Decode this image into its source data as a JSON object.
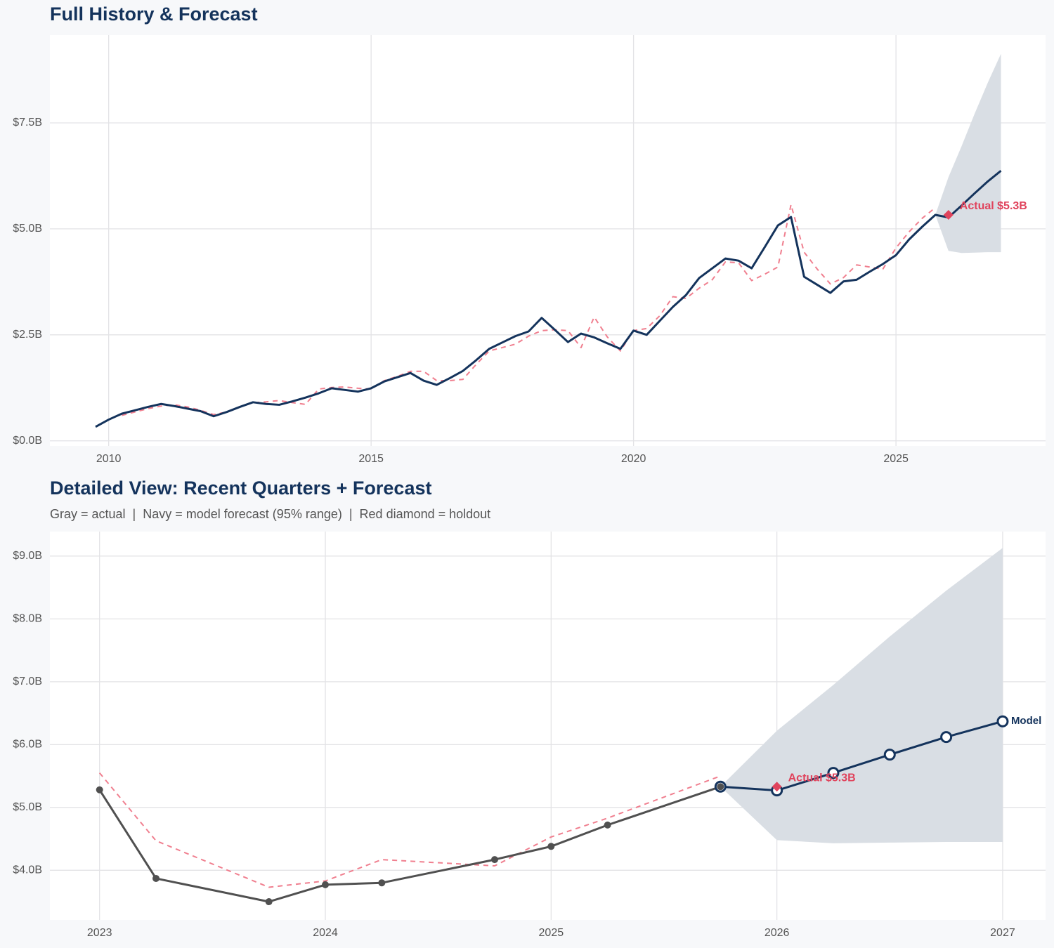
{
  "chart_data": [
    {
      "type": "line",
      "title": "Full History & Forecast",
      "xlim": [
        2008.88,
        2027.85
      ],
      "xticks": [
        2010,
        2015,
        2020,
        2025
      ],
      "ylim": [
        -0.12,
        9.57
      ],
      "yticks": [
        {
          "value": 0,
          "label": "$0.0B"
        },
        {
          "value": 2.5,
          "label": "$2.5B"
        },
        {
          "value": 5,
          "label": "$5.0B"
        },
        {
          "value": 7.5,
          "label": "$7.5B"
        }
      ],
      "grid": true,
      "band": {
        "x": [
          2025.75,
          2026,
          2026.25,
          2026.5,
          2026.75,
          2027
        ],
        "lower": [
          5.33,
          4.48,
          4.43,
          4.44,
          4.45,
          4.45
        ],
        "upper": [
          5.33,
          6.22,
          6.95,
          7.72,
          8.45,
          9.13
        ],
        "color": "#d9dee4"
      },
      "series": [
        {
          "color": "#f07f8f",
          "dash": true,
          "x": [
            2010.25,
            2010.5,
            2010.75,
            2011,
            2011.25,
            2011.5,
            2011.75,
            2012,
            2012.25,
            2012.5,
            2012.75,
            2013,
            2013.25,
            2013.5,
            2013.75,
            2014,
            2014.25,
            2014.5,
            2014.75,
            2015,
            2015.25,
            2015.5,
            2015.75,
            2016,
            2016.25,
            2016.5,
            2016.75,
            2017,
            2017.25,
            2017.5,
            2017.75,
            2018,
            2018.25,
            2018.5,
            2018.75,
            2019,
            2019.25,
            2019.5,
            2019.75,
            2020,
            2020.25,
            2020.5,
            2020.75,
            2021,
            2021.25,
            2021.5,
            2021.75,
            2022,
            2022.25,
            2022.5,
            2022.75,
            2023,
            2023.25,
            2023.5,
            2023.75,
            2024,
            2024.25,
            2024.5,
            2024.75,
            2025,
            2025.25,
            2025.5,
            2025.75
          ],
          "values": [
            0.6,
            0.68,
            0.76,
            0.82,
            0.85,
            0.8,
            0.72,
            0.62,
            0.68,
            0.8,
            0.9,
            0.92,
            0.95,
            0.9,
            0.86,
            1.22,
            1.26,
            1.27,
            1.24,
            1.22,
            1.42,
            1.52,
            1.64,
            1.64,
            1.42,
            1.42,
            1.45,
            1.8,
            2.12,
            2.2,
            2.28,
            2.47,
            2.6,
            2.62,
            2.6,
            2.2,
            2.92,
            2.45,
            2.12,
            2.6,
            2.65,
            2.95,
            3.4,
            3.36,
            3.6,
            3.8,
            4.22,
            4.2,
            3.78,
            3.93,
            4.1,
            5.57,
            4.45,
            4.05,
            3.7,
            3.85,
            4.15,
            4.1,
            4.05,
            4.55,
            4.93,
            5.25,
            5.5
          ]
        },
        {
          "color": "#14335c",
          "x": [
            2009.75,
            2010,
            2010.25,
            2010.5,
            2010.75,
            2011,
            2011.25,
            2011.5,
            2011.75,
            2012,
            2012.25,
            2012.5,
            2012.75,
            2013,
            2013.25,
            2013.5,
            2013.75,
            2014,
            2014.25,
            2014.5,
            2014.75,
            2015,
            2015.25,
            2015.5,
            2015.75,
            2016,
            2016.25,
            2016.5,
            2016.75,
            2017,
            2017.25,
            2017.5,
            2017.75,
            2018,
            2018.25,
            2018.5,
            2018.75,
            2019,
            2019.25,
            2019.5,
            2019.75,
            2020,
            2020.25,
            2020.5,
            2020.75,
            2021,
            2021.25,
            2021.5,
            2021.75,
            2022,
            2022.25,
            2022.5,
            2022.75,
            2023,
            2023.25,
            2023.5,
            2023.75,
            2024,
            2024.25,
            2024.5,
            2024.75,
            2025,
            2025.25,
            2025.5,
            2025.75,
            2026,
            2026.25,
            2026.5,
            2026.75,
            2027
          ],
          "values": [
            0.33,
            0.5,
            0.64,
            0.72,
            0.8,
            0.87,
            0.82,
            0.76,
            0.7,
            0.58,
            0.68,
            0.8,
            0.91,
            0.87,
            0.85,
            0.93,
            1.02,
            1.12,
            1.24,
            1.2,
            1.16,
            1.24,
            1.4,
            1.5,
            1.6,
            1.42,
            1.32,
            1.48,
            1.65,
            1.9,
            2.17,
            2.32,
            2.47,
            2.58,
            2.9,
            2.62,
            2.33,
            2.53,
            2.44,
            2.3,
            2.17,
            2.6,
            2.5,
            2.83,
            3.16,
            3.44,
            3.84,
            4.07,
            4.3,
            4.25,
            4.07,
            4.57,
            5.08,
            5.28,
            3.87,
            3.68,
            3.49,
            3.76,
            3.8,
            3.99,
            4.17,
            4.38,
            4.75,
            5.05,
            5.33,
            5.27,
            5.55,
            5.84,
            6.12,
            6.37
          ]
        }
      ],
      "holdout": {
        "x": [
          2026
        ],
        "values": [
          5.33
        ],
        "value_labels": [
          "Actual $5.3B"
        ],
        "color": "#e0435c"
      }
    },
    {
      "type": "line",
      "title": "Detailed View: Recent Quarters + Forecast",
      "subtitle": "Gray = actual  |  Navy = model forecast (95% range)  |  Red diamond = holdout",
      "xlim": [
        2022.78,
        2027.19
      ],
      "xticks": [
        2023,
        2024,
        2025,
        2026,
        2027
      ],
      "ylim": [
        3.21,
        9.39
      ],
      "yticks": [
        {
          "value": 4,
          "label": "$4.0B"
        },
        {
          "value": 5,
          "label": "$5.0B"
        },
        {
          "value": 6,
          "label": "$6.0B"
        },
        {
          "value": 7,
          "label": "$7.0B"
        },
        {
          "value": 8,
          "label": "$8.0B"
        },
        {
          "value": 9,
          "label": "$9.0B"
        }
      ],
      "grid": true,
      "band": {
        "x": [
          2025.75,
          2026,
          2026.25,
          2026.5,
          2026.75,
          2027
        ],
        "lower": [
          5.33,
          4.48,
          4.43,
          4.44,
          4.45,
          4.45
        ],
        "upper": [
          5.33,
          6.22,
          6.95,
          7.72,
          8.45,
          9.13
        ],
        "color": "#d9dee4"
      },
      "series": [
        {
          "color": "#f07f8f",
          "dash": true,
          "x": [
            2023,
            2023.25,
            2023.75,
            2024,
            2024.25,
            2024.75,
            2025,
            2025.25,
            2025.75
          ],
          "values": [
            5.55,
            4.47,
            3.73,
            3.83,
            4.17,
            4.07,
            4.53,
            4.83,
            5.5
          ]
        },
        {
          "name": "Model",
          "color": "#14335c",
          "markers": "open",
          "x": [
            2025.75,
            2026,
            2026.25,
            2026.5,
            2026.75,
            2027
          ],
          "values": [
            5.33,
            5.27,
            5.55,
            5.84,
            6.12,
            6.37
          ]
        },
        {
          "color": "#505050",
          "markers": "filled",
          "x": [
            2023,
            2023.25,
            2023.75,
            2024,
            2024.25,
            2024.75,
            2025,
            2025.25,
            2025.75
          ],
          "values": [
            5.28,
            3.87,
            3.5,
            3.77,
            3.8,
            4.17,
            4.38,
            4.72,
            5.33
          ]
        }
      ],
      "holdout": {
        "x": [
          2026
        ],
        "values": [
          5.33
        ],
        "value_labels": [
          "Actual $5.3B"
        ],
        "color": "#e0435c"
      }
    }
  ]
}
